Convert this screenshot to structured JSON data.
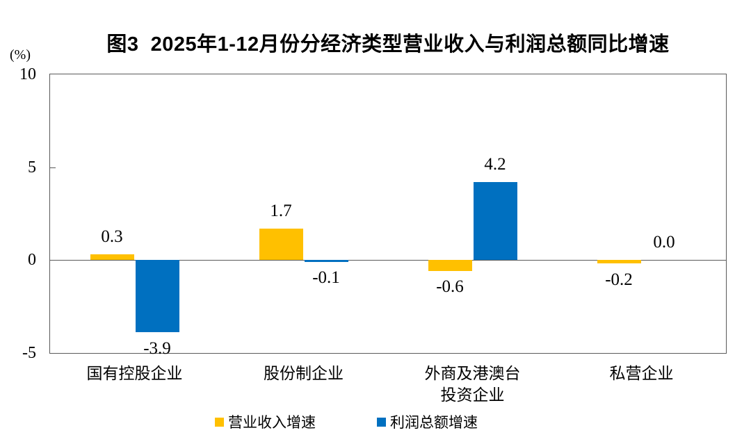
{
  "title": "图3  2025年1-12月份分经济类型营业收入与利润总额同比增速",
  "y_axis_unit": "(%)",
  "chart_data": {
    "type": "bar",
    "title": "图3  2025年1-12月份分经济类型营业收入与利润总额同比增速",
    "ylabel": "(%)",
    "ylim": [
      -5,
      10
    ],
    "yticks": [
      10,
      5,
      0,
      -5
    ],
    "grid": false,
    "legend_position": "bottom",
    "categories": [
      "国有控股企业",
      "股份制企业",
      "外商及港澳台\n投资企业",
      "私营企业"
    ],
    "series": [
      {
        "key": "revenue-growth",
        "name": "营业收入增速",
        "color": "#FFC000",
        "values": [
          0.3,
          1.7,
          -0.6,
          -0.2
        ],
        "value_labels": [
          "0.3",
          "1.7",
          "-0.6",
          "-0.2"
        ]
      },
      {
        "key": "profit-growth",
        "name": "利润总额增速",
        "color": "#0070C0",
        "values": [
          -3.9,
          -0.1,
          4.2,
          0.0
        ],
        "value_labels": [
          "-3.9",
          "-0.1",
          "4.2",
          "0.0"
        ]
      }
    ]
  }
}
